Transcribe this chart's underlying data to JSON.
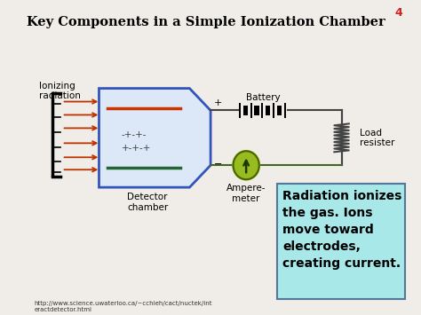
{
  "title": "Key Components in a Simple Ionization Chamber",
  "background_color": "#f0ede8",
  "text_box_bg": "#a8e8e8",
  "title_fontsize": 10.5,
  "annotation_text": "Radiation ionizes\nthe gas. Ions\nmove toward\nelectrodes,\ncreating current.",
  "url_text": "http://www.science.uwaterloo.ca/~cchieh/cact/nuctek/int\neractdetector.html",
  "page_number": "4",
  "label_ionizing": "Ionizing\nradiation",
  "label_detector": "Detector\nchamber",
  "label_battery": "Battery",
  "label_ampere": "Ampere-\nmeter",
  "label_load": "Load\nresister"
}
